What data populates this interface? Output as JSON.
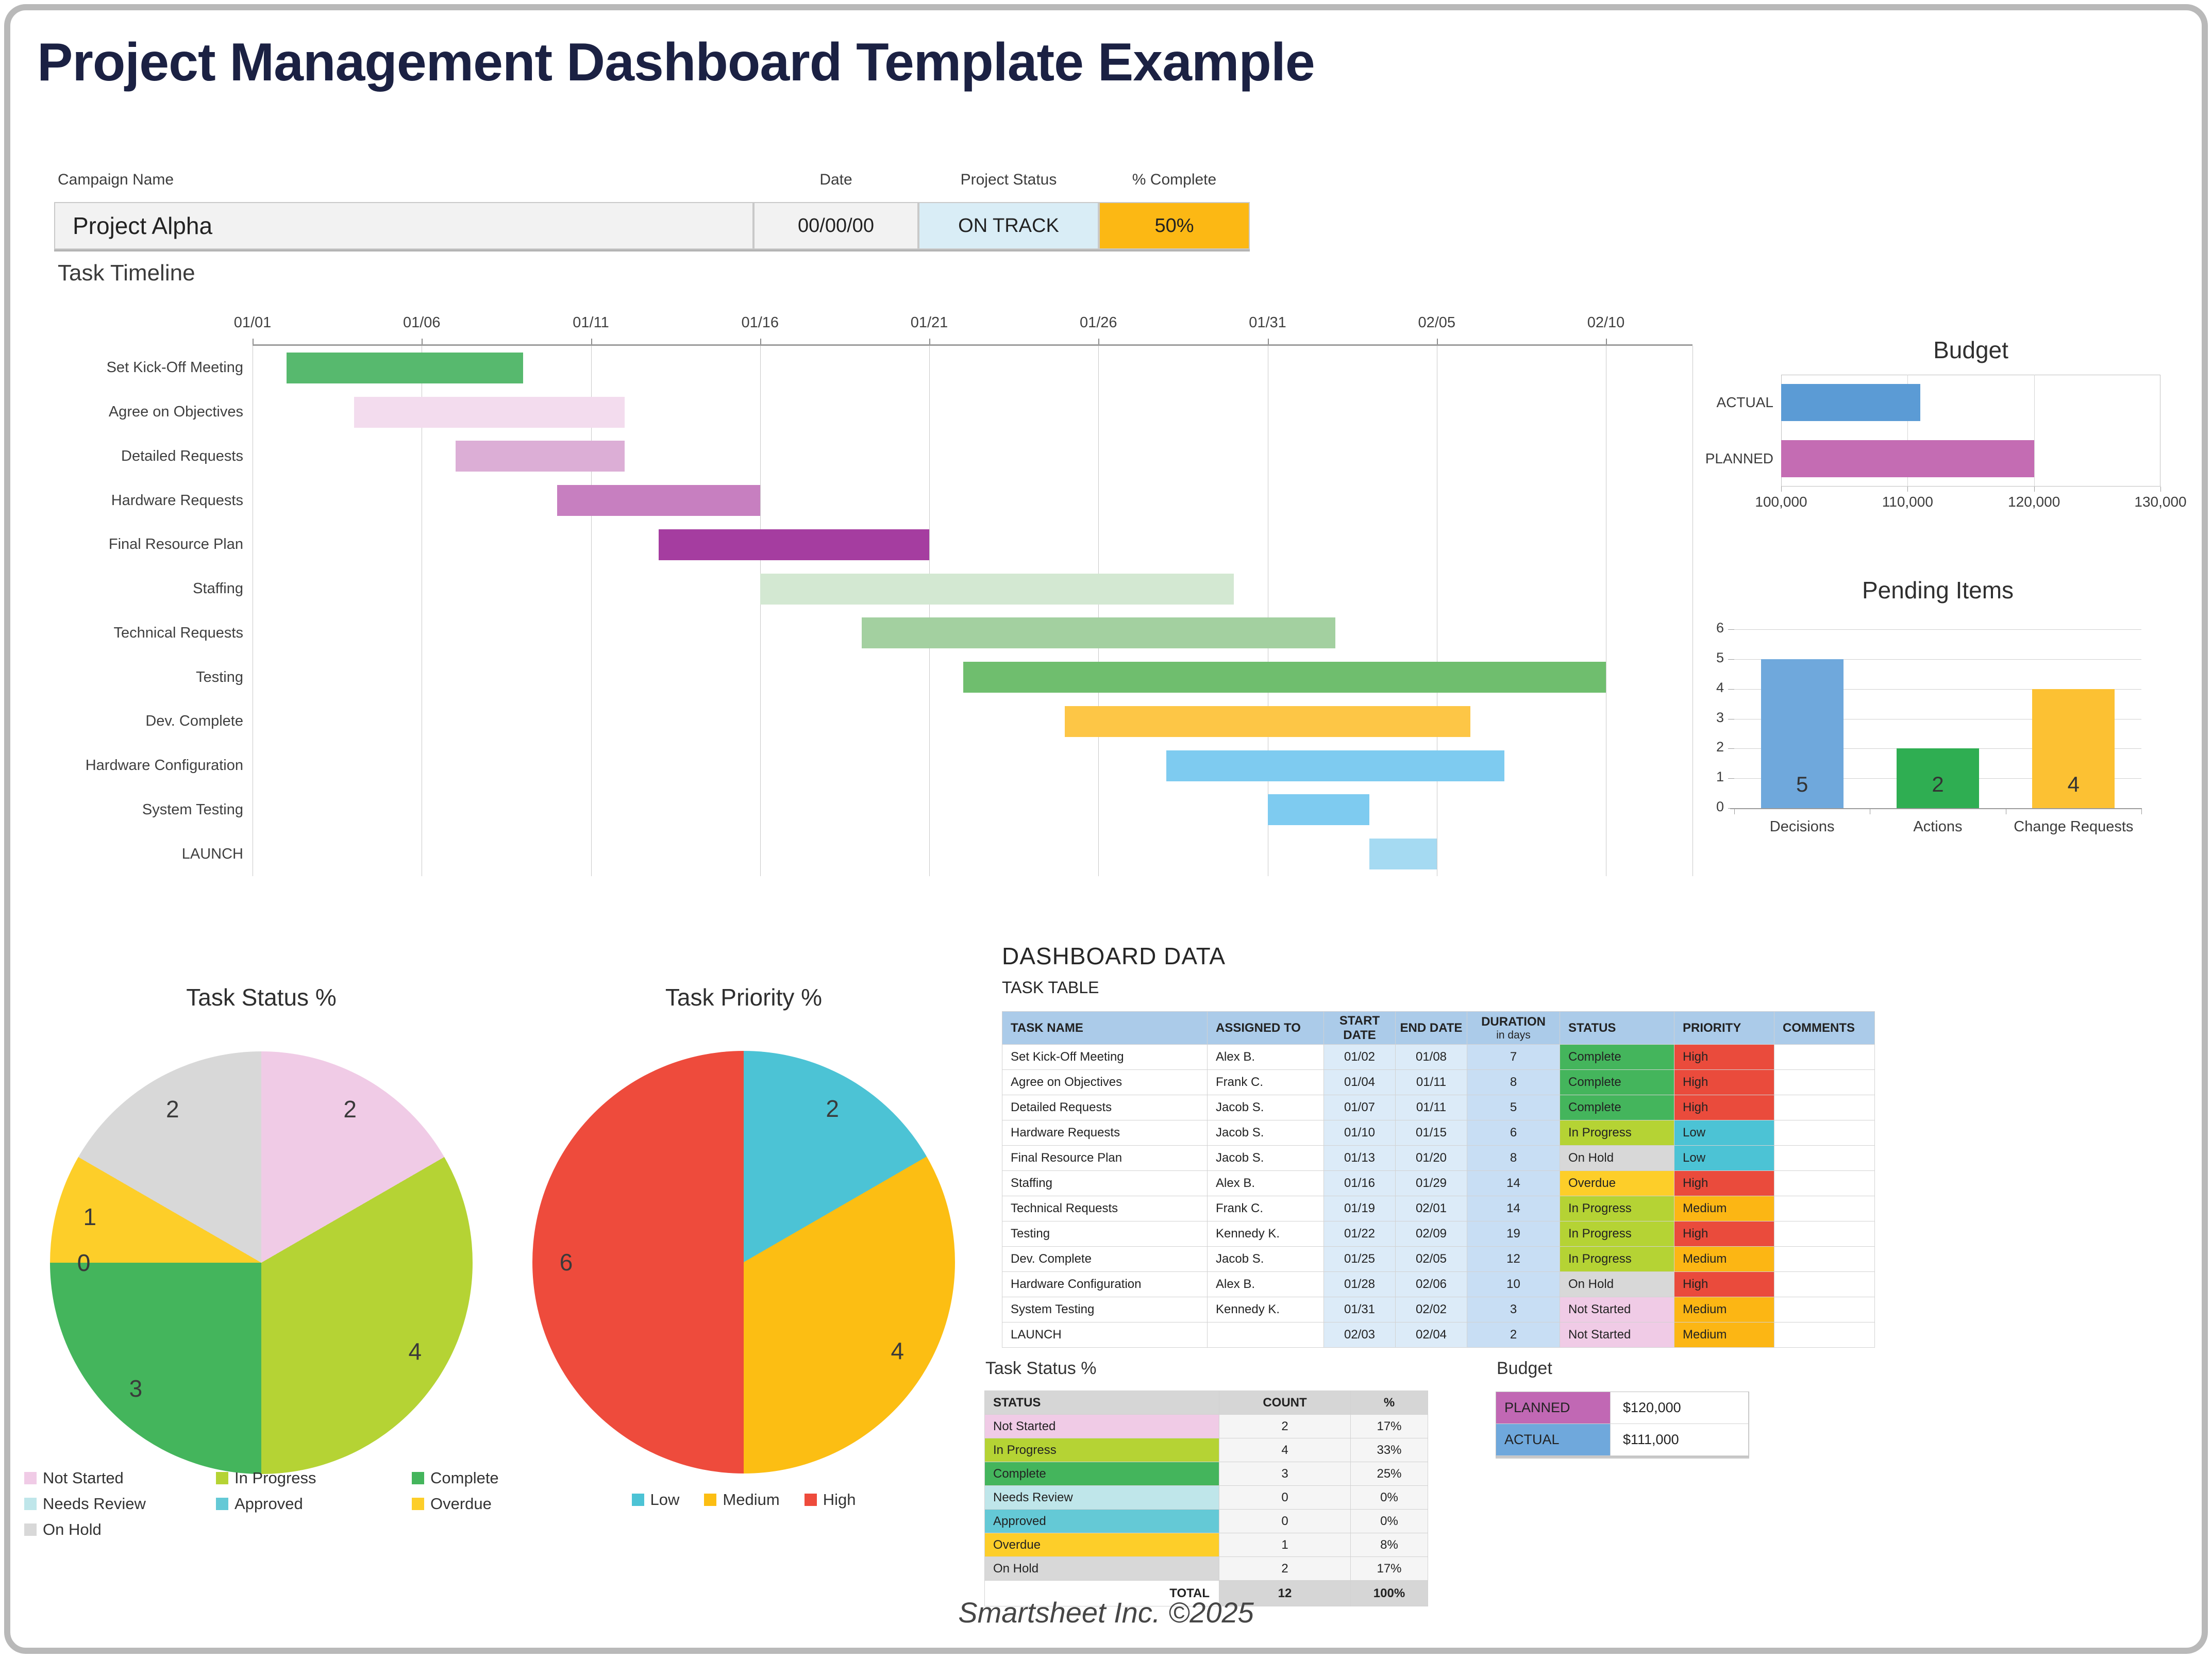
{
  "page": {
    "title": "Project Management Dashboard Template Example",
    "title_color": "#1b2143",
    "footer": "Smartsheet Inc. ©2025"
  },
  "campaign": {
    "name_label": "Campaign Name",
    "name_value": "Project Alpha",
    "date_label": "Date",
    "date_value": "00/00/00",
    "status_label": "Project Status",
    "status_value": "ON TRACK",
    "status_bg": "#d9edf6",
    "complete_label": "% Complete",
    "complete_value": "50%",
    "complete_bg": "#fcb814"
  },
  "timeline_heading": "Task Timeline",
  "chart_data": [
    {
      "id": "task_timeline",
      "type": "gantt",
      "title": "Task Timeline",
      "x_ticks": [
        "01/01",
        "01/06",
        "01/11",
        "01/16",
        "01/21",
        "01/26",
        "01/31",
        "02/05",
        "02/10"
      ],
      "tasks": [
        {
          "name": "Set Kick-Off Meeting",
          "start": "01/02",
          "end": "01/08",
          "duration": 7,
          "offset": 1,
          "color": "#57b96e"
        },
        {
          "name": "Agree on Objectives",
          "start": "01/04",
          "end": "01/11",
          "duration": 8,
          "offset": 3,
          "color": "#f3dcee"
        },
        {
          "name": "Detailed Requests",
          "start": "01/07",
          "end": "01/11",
          "duration": 5,
          "offset": 6,
          "color": "#dcaed6"
        },
        {
          "name": "Hardware Requests",
          "start": "01/10",
          "end": "01/15",
          "duration": 6,
          "offset": 9,
          "color": "#c77fc0"
        },
        {
          "name": "Final Resource Plan",
          "start": "01/13",
          "end": "01/20",
          "duration": 8,
          "offset": 12,
          "color": "#a53da0"
        },
        {
          "name": "Staffing",
          "start": "01/16",
          "end": "01/29",
          "duration": 14,
          "offset": 15,
          "color": "#d3e8d2"
        },
        {
          "name": "Technical Requests",
          "start": "01/19",
          "end": "02/01",
          "duration": 14,
          "offset": 18,
          "color": "#a3d0a0"
        },
        {
          "name": "Testing",
          "start": "01/22",
          "end": "02/09",
          "duration": 19,
          "offset": 21,
          "color": "#6fbe6e"
        },
        {
          "name": "Dev. Complete",
          "start": "01/25",
          "end": "02/05",
          "duration": 12,
          "offset": 24,
          "color": "#fdc646"
        },
        {
          "name": "Hardware Configuration",
          "start": "01/28",
          "end": "02/06",
          "duration": 10,
          "offset": 27,
          "color": "#7ecbf0"
        },
        {
          "name": "System Testing",
          "start": "01/31",
          "end": "02/02",
          "duration": 3,
          "offset": 30,
          "color": "#7ecbf0"
        },
        {
          "name": "LAUNCH",
          "start": "02/03",
          "end": "02/04",
          "duration": 2,
          "offset": 33,
          "color": "#a5daf2"
        }
      ]
    },
    {
      "id": "budget",
      "type": "bar",
      "orientation": "horizontal",
      "title": "Budget",
      "categories": [
        "ACTUAL",
        "PLANNED"
      ],
      "values": [
        111000,
        120000
      ],
      "colors": [
        "#5b9bd5",
        "#c46cb3"
      ],
      "xlim": [
        100000,
        130000
      ],
      "x_tick_labels": [
        "100,000",
        "110,000",
        "120,000",
        "130,000"
      ],
      "grid": true
    },
    {
      "id": "pending",
      "type": "bar",
      "orientation": "vertical",
      "title": "Pending Items",
      "categories": [
        "Decisions",
        "Actions",
        "Change Requests"
      ],
      "values": [
        5,
        2,
        4
      ],
      "colors": [
        "#6fa8dc",
        "#2fae52",
        "#fcc133"
      ],
      "ylim": [
        0,
        6
      ],
      "y_tick_labels": [
        "0",
        "1",
        "2",
        "3",
        "4",
        "5",
        "6"
      ],
      "grid": true
    },
    {
      "id": "status_pie",
      "type": "pie",
      "title": "Task Status %",
      "legend_columns": 3,
      "slices": [
        {
          "label": "Not Started",
          "value": 2,
          "color": "#f0cbe6"
        },
        {
          "label": "In Progress",
          "value": 4,
          "color": "#b5d334"
        },
        {
          "label": "Complete",
          "value": 3,
          "color": "#44b55c"
        },
        {
          "label": "Needs Review",
          "value": 0,
          "color": "#bfe6ea"
        },
        {
          "label": "Approved",
          "value": 0,
          "color": "#64c9d6"
        },
        {
          "label": "Overdue",
          "value": 1,
          "color": "#fdce29"
        },
        {
          "label": "On Hold",
          "value": 2,
          "color": "#d8d8d8"
        }
      ]
    },
    {
      "id": "priority_pie",
      "type": "pie",
      "title": "Task Priority %",
      "legend_columns": 3,
      "slices": [
        {
          "label": "Low",
          "value": 2,
          "color": "#4cc3d5"
        },
        {
          "label": "Medium",
          "value": 4,
          "color": "#fcbe13"
        },
        {
          "label": "High",
          "value": 6,
          "color": "#ee4b3c"
        }
      ]
    }
  ],
  "dashboard": {
    "heading": "DASHBOARD DATA",
    "task_table": {
      "sub_heading": "TASK TABLE",
      "columns": [
        {
          "label": "TASK NAME"
        },
        {
          "label": "ASSIGNED TO"
        },
        {
          "label": "START DATE"
        },
        {
          "label": "END DATE"
        },
        {
          "label": "DURATION",
          "sub": "in days"
        },
        {
          "label": "STATUS"
        },
        {
          "label": "PRIORITY"
        },
        {
          "label": "COMMENTS"
        }
      ],
      "rows": [
        [
          "Set Kick-Off Meeting",
          "Alex B.",
          "01/02",
          "01/08",
          "7",
          "Complete",
          "High",
          ""
        ],
        [
          "Agree on Objectives",
          "Frank C.",
          "01/04",
          "01/11",
          "8",
          "Complete",
          "High",
          ""
        ],
        [
          "Detailed Requests",
          "Jacob S.",
          "01/07",
          "01/11",
          "5",
          "Complete",
          "High",
          ""
        ],
        [
          "Hardware Requests",
          "Jacob S.",
          "01/10",
          "01/15",
          "6",
          "In Progress",
          "Low",
          ""
        ],
        [
          "Final Resource Plan",
          "Jacob S.",
          "01/13",
          "01/20",
          "8",
          "On Hold",
          "Low",
          ""
        ],
        [
          "Staffing",
          "Alex B.",
          "01/16",
          "01/29",
          "14",
          "Overdue",
          "High",
          ""
        ],
        [
          "Technical Requests",
          "Frank C.",
          "01/19",
          "02/01",
          "14",
          "In Progress",
          "Medium",
          ""
        ],
        [
          "Testing",
          "Kennedy K.",
          "01/22",
          "02/09",
          "19",
          "In Progress",
          "High",
          ""
        ],
        [
          "Dev. Complete",
          "Jacob S.",
          "01/25",
          "02/05",
          "12",
          "In Progress",
          "Medium",
          ""
        ],
        [
          "Hardware Configuration",
          "Alex B.",
          "01/28",
          "02/06",
          "10",
          "On Hold",
          "High",
          ""
        ],
        [
          "System Testing",
          "Kennedy K.",
          "01/31",
          "02/02",
          "3",
          "Not Started",
          "Medium",
          ""
        ],
        [
          "LAUNCH",
          "",
          "02/03",
          "02/04",
          "2",
          "Not Started",
          "Medium",
          ""
        ]
      ],
      "status_colors": {
        "Not Started": "#f0cbe6",
        "In Progress": "#b5d334",
        "Complete": "#44b55c",
        "Needs Review": "#bfe6ea",
        "Approved": "#64c9d6",
        "Overdue": "#fdce29",
        "On Hold": "#d8d8d8"
      },
      "priority_colors": {
        "Low": "#4cc3d5",
        "Medium": "#fcb614",
        "High": "#ea4b3c"
      }
    },
    "status_table": {
      "heading": "Task Status %",
      "columns": [
        "STATUS",
        "COUNT",
        "%"
      ],
      "rows": [
        [
          "Not Started",
          "2",
          "17%"
        ],
        [
          "In Progress",
          "4",
          "33%"
        ],
        [
          "Complete",
          "3",
          "25%"
        ],
        [
          "Needs Review",
          "0",
          "0%"
        ],
        [
          "Approved",
          "0",
          "0%"
        ],
        [
          "Overdue",
          "1",
          "8%"
        ],
        [
          "On Hold",
          "2",
          "17%"
        ]
      ],
      "total": {
        "label": "TOTAL",
        "count": "12",
        "pct": "100%"
      }
    },
    "budget_table": {
      "heading": "Budget",
      "rows": [
        {
          "label": "PLANNED",
          "value": "$120,000",
          "color": "#c168b4"
        },
        {
          "label": "ACTUAL",
          "value": "$111,000",
          "color": "#6fa8dc"
        }
      ]
    }
  }
}
